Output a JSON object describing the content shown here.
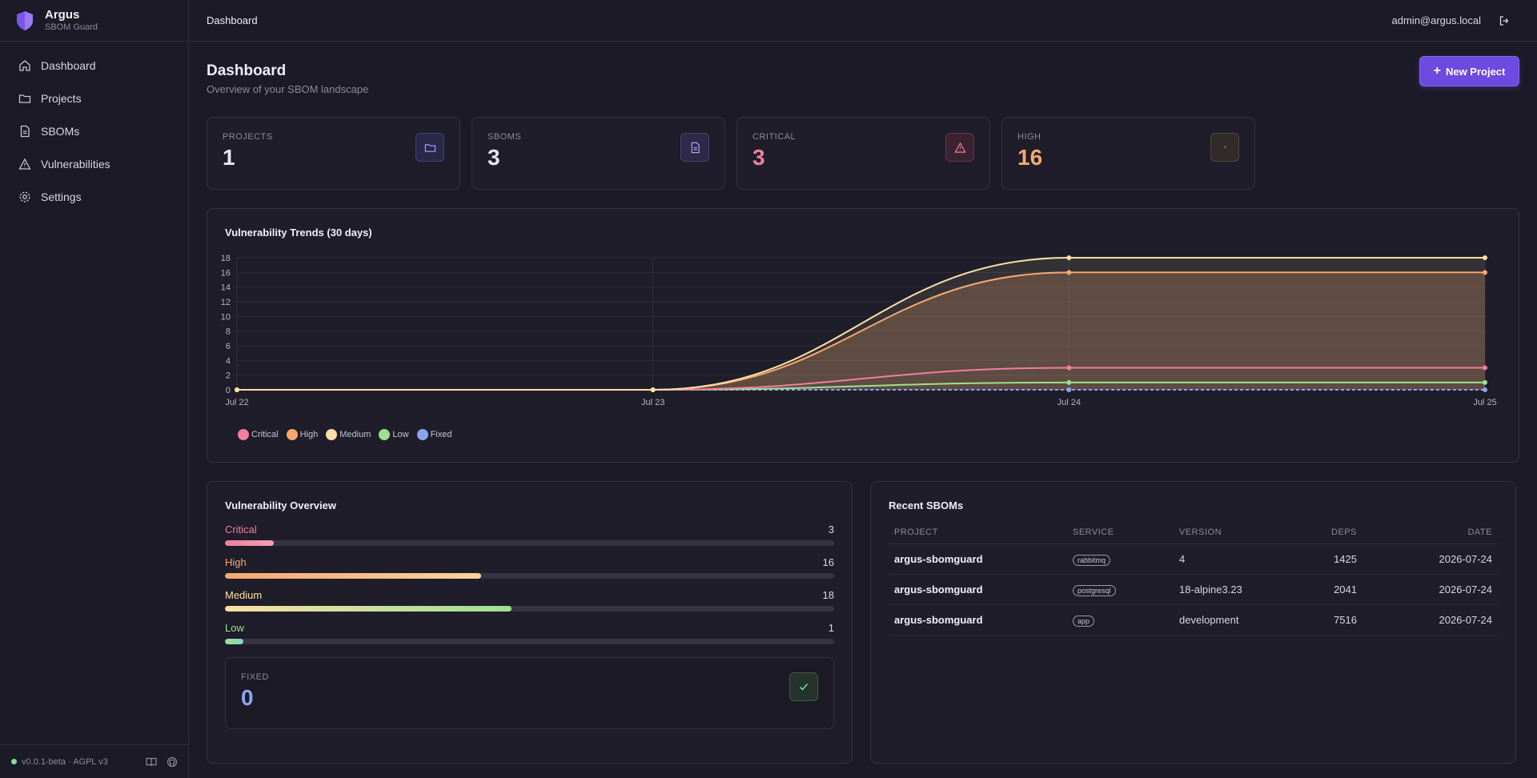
{
  "brand": {
    "name": "Argus",
    "subtitle": "SBOM Guard"
  },
  "nav": [
    {
      "label": "Dashboard",
      "icon": "home-icon"
    },
    {
      "label": "Projects",
      "icon": "folder-icon"
    },
    {
      "label": "SBOMs",
      "icon": "file-icon"
    },
    {
      "label": "Vulnerabilities",
      "icon": "alert-triangle-icon"
    },
    {
      "label": "Settings",
      "icon": "gear-icon"
    }
  ],
  "footer": {
    "version": "v0.0.1-beta · AGPL v3"
  },
  "topbar": {
    "title": "Dashboard",
    "user": "admin@argus.local"
  },
  "page": {
    "title": "Dashboard",
    "subtitle": "Overview of your SBOM landscape",
    "new_button": "New Project"
  },
  "stats": [
    {
      "label": "PROJECTS",
      "value": "1",
      "color": "#e6e4ee",
      "icon": "folder-icon"
    },
    {
      "label": "SBOMS",
      "value": "3",
      "color": "#e6e4ee",
      "icon": "file-icon"
    },
    {
      "label": "CRITICAL",
      "value": "3",
      "color": "#f07ea0",
      "icon": "alert-triangle-icon"
    },
    {
      "label": "HIGH",
      "value": "16",
      "color": "#f7a86f",
      "icon": "alert-icon"
    }
  ],
  "trend": {
    "title": "Vulnerability Trends (30 days)"
  },
  "chart_data": {
    "type": "line",
    "x": [
      "Jul 22",
      "Jul 23",
      "Jul 24",
      "Jul 25"
    ],
    "ylim": [
      0,
      18
    ],
    "yticks": [
      0,
      2,
      4,
      6,
      8,
      10,
      12,
      14,
      16,
      18
    ],
    "grid": true,
    "legend": "bottom-left",
    "series": [
      {
        "name": "Critical",
        "color": "#f07ea0",
        "values": [
          0,
          0,
          3,
          3
        ]
      },
      {
        "name": "High",
        "color": "#f7a86f",
        "values": [
          0,
          0,
          16,
          16
        ]
      },
      {
        "name": "Medium",
        "color": "#fbe0a6",
        "values": [
          0,
          0,
          18,
          18
        ]
      },
      {
        "name": "Low",
        "color": "#9ee08f",
        "values": [
          0,
          0,
          1,
          1
        ]
      },
      {
        "name": "Fixed",
        "color": "#86a6f0",
        "values": [
          0,
          0,
          0,
          0
        ]
      }
    ]
  },
  "overview": {
    "title": "Vulnerability Overview",
    "bars": [
      {
        "label": "Critical",
        "count": "3",
        "fraction": 0.08,
        "labelColor": "#f07ea0",
        "gradient": "linear-gradient(90deg,#f07ea0,#f4a0b4)"
      },
      {
        "label": "High",
        "count": "16",
        "fraction": 0.42,
        "labelColor": "#f7a86f",
        "gradient": "linear-gradient(90deg,#f7a86f,#f9d59c)"
      },
      {
        "label": "Medium",
        "count": "18",
        "fraction": 0.47,
        "labelColor": "#fbe0a6",
        "gradient": "linear-gradient(90deg,#fbe0a6,#9ee08f)"
      },
      {
        "label": "Low",
        "count": "1",
        "fraction": 0.03,
        "labelColor": "#9ee08f",
        "gradient": "linear-gradient(90deg,#9ee08f,#7fd6c0)"
      }
    ],
    "fixed": {
      "label": "FIXED",
      "value": "0"
    }
  },
  "recent": {
    "title": "Recent SBOMs",
    "columns": [
      "PROJECT",
      "SERVICE",
      "VERSION",
      "DEPS",
      "DATE"
    ],
    "rows": [
      {
        "project": "argus-sbomguard",
        "service": "rabbitmq",
        "version": "4",
        "deps": "1425",
        "date": "2026-07-24"
      },
      {
        "project": "argus-sbomguard",
        "service": "postgresql",
        "version": "18-alpine3.23",
        "deps": "2041",
        "date": "2026-07-24"
      },
      {
        "project": "argus-sbomguard",
        "service": "app",
        "version": "development",
        "deps": "7516",
        "date": "2026-07-24"
      }
    ]
  }
}
